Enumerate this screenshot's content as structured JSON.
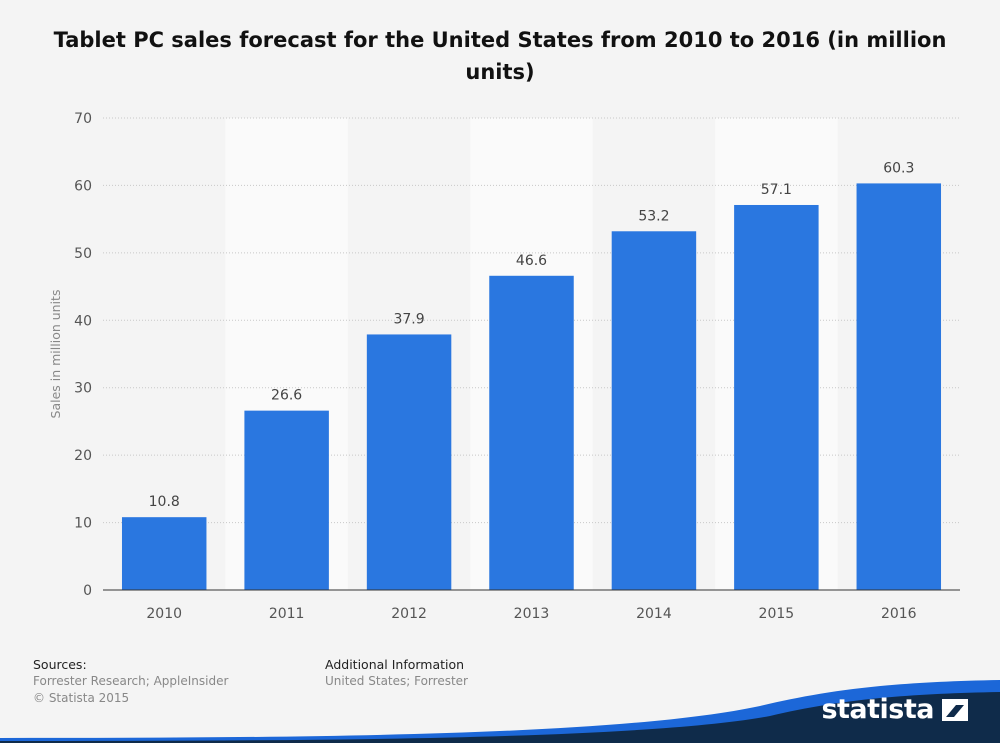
{
  "chart_data": {
    "type": "bar",
    "title": "Tablet PC sales forecast for the United States from 2010 to 2016 (in million units)",
    "ylabel": "Sales in million units",
    "xlabel": "",
    "categories": [
      "2010",
      "2011",
      "2012",
      "2013",
      "2014",
      "2015",
      "2016"
    ],
    "values": [
      10.8,
      26.6,
      37.9,
      46.6,
      53.2,
      57.1,
      60.3
    ],
    "value_labels": [
      "10.8",
      "26.6",
      "37.9",
      "46.6",
      "53.2",
      "57.1",
      "60.3"
    ],
    "ylim": [
      0,
      70
    ],
    "yticks": [
      0,
      10,
      20,
      30,
      40,
      50,
      60,
      70
    ],
    "grid": true,
    "bar_color": "#2a77e0"
  },
  "footer": {
    "sources_heading": "Sources:",
    "sources_lines": [
      "Forrester Research; AppleInsider",
      "© Statista 2015"
    ],
    "info_heading": "Additional Information",
    "info_lines": [
      "United States; Forrester"
    ],
    "brand": "statista",
    "accent_color": "#1c67d8",
    "dark_color": "#0f2b4a"
  }
}
